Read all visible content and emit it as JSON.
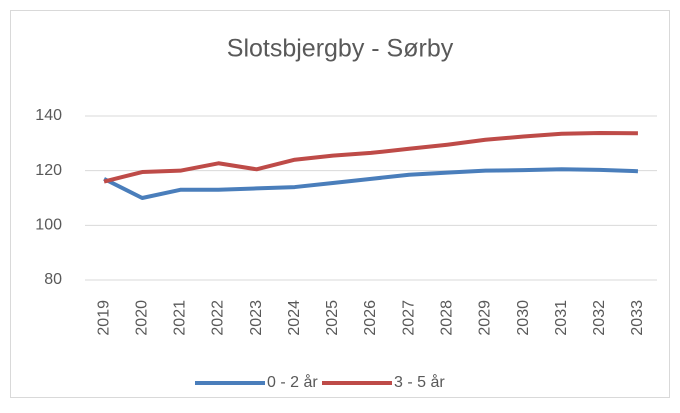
{
  "chart_data": {
    "type": "line",
    "title": "Slotsbjergby - Sørby",
    "categories": [
      "2019",
      "2020",
      "2021",
      "2022",
      "2023",
      "2024",
      "2025",
      "2026",
      "2027",
      "2028",
      "2029",
      "2030",
      "2031",
      "2032",
      "2033"
    ],
    "series": [
      {
        "name": "0 - 2 år",
        "color": "#4a7ebb",
        "values": [
          117,
          110,
          113,
          113,
          113.5,
          114,
          115.5,
          117,
          118.5,
          119.3,
          120,
          120.2,
          120.5,
          120.3,
          119.8
        ]
      },
      {
        "name": "3 - 5 år",
        "color": "#be4b48",
        "values": [
          116,
          119.5,
          120,
          122.7,
          120.5,
          124,
          125.5,
          126.5,
          128,
          129.5,
          131.3,
          132.5,
          133.5,
          133.8,
          133.7
        ]
      }
    ],
    "ylim": [
      80,
      140
    ],
    "yticks": [
      80,
      100,
      120,
      140
    ],
    "grid": true,
    "legend": "bottom"
  }
}
